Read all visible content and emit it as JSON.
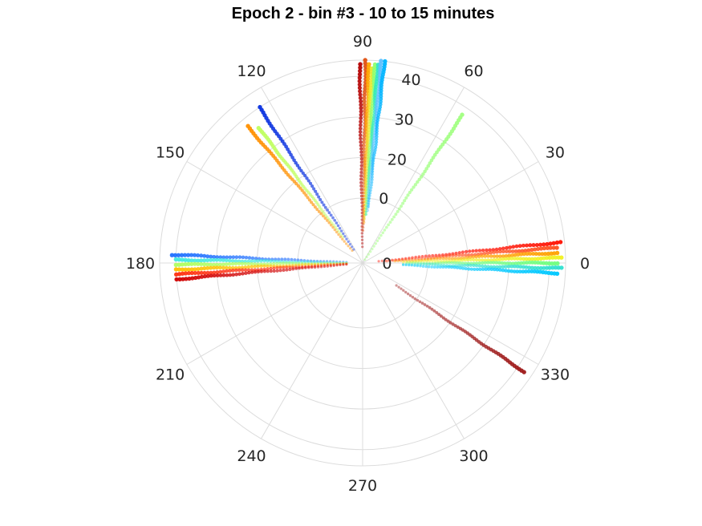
{
  "chart_data": {
    "type": "scatter",
    "coordinate_system": "polar",
    "title": "Epoch 2 - bin #3 - 10 to 15 minutes",
    "theta_unit": "degrees",
    "theta_ticks": [
      0,
      30,
      60,
      90,
      120,
      150,
      180,
      210,
      240,
      270,
      300,
      330
    ],
    "theta_tick_labels": [
      "0",
      "30",
      "60",
      "90",
      "120",
      "150",
      "180",
      "210",
      "240",
      "270",
      "300",
      "330"
    ],
    "r_ticks": [
      0,
      20,
      30,
      40
    ],
    "r_tick_labels": [
      "0",
      "20",
      "30",
      "40"
    ],
    "r_tick_angle": 80,
    "r_lim": [
      -6,
      44
    ],
    "grid": true,
    "series": [
      {
        "theta": 90.8,
        "r_range": [
          -2,
          43
        ],
        "color": "#b40000"
      },
      {
        "theta": 89.2,
        "r_range": [
          2,
          44
        ],
        "color": "#e05010"
      },
      {
        "theta": 88.2,
        "r_range": [
          4,
          43
        ],
        "color": "#ffa500"
      },
      {
        "theta": 87.3,
        "r_range": [
          5,
          42
        ],
        "color": "#e8e830"
      },
      {
        "theta": 86.4,
        "r_range": [
          6,
          43
        ],
        "color": "#90ff70"
      },
      {
        "theta": 85.6,
        "r_range": [
          6,
          43
        ],
        "color": "#30e8c0"
      },
      {
        "theta": 84.7,
        "r_range": [
          7,
          44
        ],
        "color": "#60c0ff"
      },
      {
        "theta": 83.8,
        "r_range": [
          8,
          44
        ],
        "color": "#00b4ff"
      },
      {
        "theta": 56,
        "r_range": [
          -5,
          38
        ],
        "color": "#a0ff80"
      },
      {
        "theta": 123.5,
        "r_range": [
          -2,
          40
        ],
        "color": "#0830e0"
      },
      {
        "theta": 127.5,
        "r_range": [
          2,
          36
        ],
        "color": "#c0ff60"
      },
      {
        "theta": 130,
        "r_range": [
          -2,
          38
        ],
        "color": "#ff9000"
      },
      {
        "theta": 6,
        "r_range": [
          -2,
          43
        ],
        "color": "#ff1000"
      },
      {
        "theta": 4.5,
        "r_range": [
          0,
          42
        ],
        "color": "#ff5020"
      },
      {
        "theta": 3,
        "r_range": [
          2,
          42
        ],
        "color": "#ffa000"
      },
      {
        "theta": 1.5,
        "r_range": [
          4,
          43
        ],
        "color": "#f0f020"
      },
      {
        "theta": 0,
        "r_range": [
          5,
          42
        ],
        "color": "#70ff80"
      },
      {
        "theta": -1.5,
        "r_range": [
          4,
          43
        ],
        "color": "#30e0d0"
      },
      {
        "theta": -3,
        "r_range": [
          4,
          42
        ],
        "color": "#00c8ff"
      },
      {
        "theta": 177.5,
        "r_range": [
          -2,
          41
        ],
        "color": "#2070ff"
      },
      {
        "theta": 179,
        "r_range": [
          -2,
          40
        ],
        "color": "#40e8e0"
      },
      {
        "theta": 180.5,
        "r_range": [
          -2,
          40
        ],
        "color": "#b0ff60"
      },
      {
        "theta": 182,
        "r_range": [
          -2,
          40
        ],
        "color": "#ffc000"
      },
      {
        "theta": 183.5,
        "r_range": [
          -2,
          40
        ],
        "color": "#ff3010"
      },
      {
        "theta": 185,
        "r_range": [
          -2,
          40
        ],
        "color": "#d00000"
      },
      {
        "theta": 326,
        "r_range": [
          4,
          42
        ],
        "color": "#9e1a1a"
      }
    ]
  }
}
